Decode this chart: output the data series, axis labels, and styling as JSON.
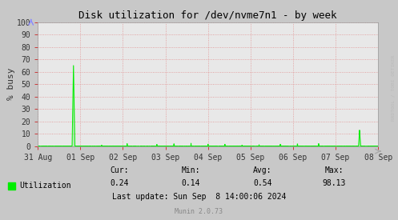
{
  "title": "Disk utilization for /dev/nvme7n1 - by week",
  "ylabel": "% busy",
  "bg_color": "#c8c8c8",
  "plot_bg_color": "#e8e8e8",
  "grid_color": "#e08080",
  "line_color": "#00ee00",
  "ylim": [
    0,
    100
  ],
  "yticks": [
    0,
    10,
    20,
    30,
    40,
    50,
    60,
    70,
    80,
    90,
    100
  ],
  "xlim_days": [
    0,
    8
  ],
  "xtick_labels": [
    "31 Aug",
    "01 Sep",
    "02 Sep",
    "03 Sep",
    "04 Sep",
    "05 Sep",
    "06 Sep",
    "07 Sep",
    "08 Sep"
  ],
  "xtick_positions": [
    0,
    1,
    2,
    3,
    4,
    5,
    6,
    7,
    8
  ],
  "legend_label": "Utilization",
  "stats_cur": "0.24",
  "stats_min": "0.14",
  "stats_avg": "0.54",
  "stats_max": "98.13",
  "last_update": "Last update: Sun Sep  8 14:00:06 2024",
  "footer": "Munin 2.0.73",
  "watermark": "RRDTOOL / TOBI OETIKER",
  "title_color": "#000000",
  "spike1_x": 0.84,
  "spike1_y": 65,
  "spike2_x": 7.56,
  "spike2_y": 13,
  "noise_amplitude": 0.3,
  "font_size_title": 9,
  "font_size_axis": 7,
  "font_size_stats": 7,
  "font_size_footer": 6,
  "font_size_watermark": 4.5
}
